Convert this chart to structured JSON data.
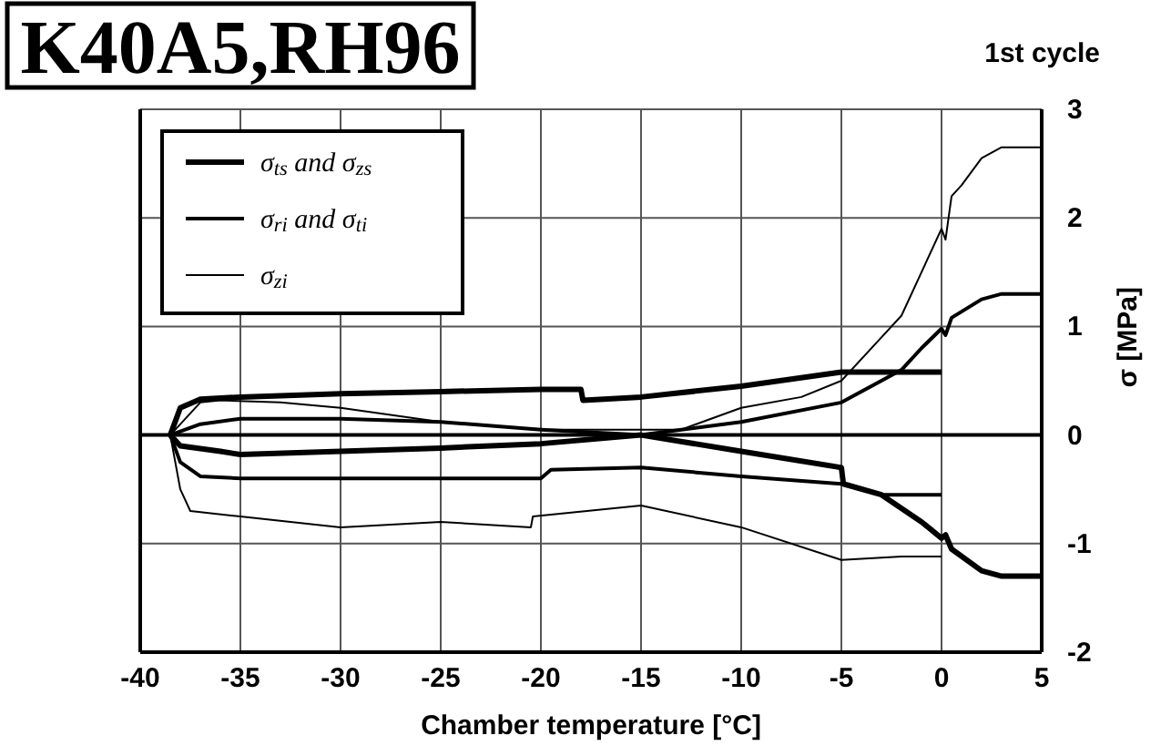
{
  "chart_data": {
    "type": "line",
    "title": "K40A5,RH96",
    "subtitle": "1st cycle",
    "xlabel": "Chamber temperature [°C]",
    "ylabel": "σ [MPa]",
    "xlim": [
      -40,
      5
    ],
    "xticks": [
      -40,
      -35,
      -30,
      -25,
      -20,
      -15,
      -10,
      -5,
      0,
      5
    ],
    "ylim": [
      -2,
      3
    ],
    "yticks": [
      -2,
      -1,
      0,
      1,
      2,
      3
    ],
    "grid": true,
    "legend": "top left",
    "marker": "none",
    "line_style": "solid",
    "series": [
      {
        "name": "σ$_{ts}$ and σ$_{zs}$",
        "color": "#000000",
        "x": [
          -38.5,
          -38,
          -37,
          -35,
          -30,
          -25,
          -20,
          -18,
          -17.9,
          -15,
          -10,
          -5,
          -3,
          0,
          null,
          -38.5,
          -38,
          -36,
          -35,
          -30,
          -25,
          -20,
          -15,
          -10,
          -5,
          -4.9,
          -3,
          -1,
          0,
          0.2,
          0.5,
          2,
          3,
          5
        ],
        "values": [
          0,
          0.25,
          0.33,
          0.35,
          0.38,
          0.4,
          0.42,
          0.42,
          0.32,
          0.35,
          0.45,
          0.58,
          0.58,
          0.58,
          null,
          0,
          -0.1,
          -0.15,
          -0.18,
          -0.15,
          -0.12,
          -0.08,
          0,
          -0.15,
          -0.3,
          -0.45,
          -0.55,
          -0.8,
          -0.95,
          -0.92,
          -1.05,
          -1.25,
          -1.3,
          -1.3
        ]
      },
      {
        "name": "σ$_{ri}$ and σ$_{ti}$",
        "color": "#000000",
        "x": [
          -38.5,
          -37,
          -35,
          -30,
          -25,
          -20,
          -15,
          -10,
          -5,
          -3,
          -2,
          -1,
          0,
          0.2,
          0.5,
          2,
          3,
          5,
          null,
          -38.5,
          -38,
          -37,
          -35,
          -30,
          -25,
          -20,
          -19.5,
          -15,
          -10,
          -5,
          -3,
          0
        ],
        "values": [
          0,
          0.1,
          0.15,
          0.15,
          0.12,
          0.05,
          0,
          0.12,
          0.3,
          0.5,
          0.6,
          0.8,
          0.98,
          0.92,
          1.08,
          1.25,
          1.3,
          1.3,
          null,
          0,
          -0.25,
          -0.38,
          -0.4,
          -0.4,
          -0.4,
          -0.4,
          -0.32,
          -0.3,
          -0.38,
          -0.45,
          -0.55,
          -0.55
        ]
      },
      {
        "name": "σ$_{zi}$",
        "color": "#000000",
        "x": [
          -38.5,
          -37,
          -36,
          -33,
          -30,
          -25,
          -20,
          -15,
          -13,
          -10,
          -7,
          -5,
          -3,
          -2,
          -1,
          0,
          0.2,
          0.5,
          1,
          2,
          3,
          5,
          null,
          -38.5,
          -38,
          -37.5,
          -35,
          -30,
          -25,
          -20.5,
          -20.4,
          -15,
          -10,
          -5,
          -2,
          0
        ],
        "values": [
          0,
          0.3,
          0.32,
          0.3,
          0.25,
          0.12,
          0.05,
          0.05,
          0.05,
          0.25,
          0.35,
          0.5,
          0.9,
          1.1,
          1.5,
          1.9,
          1.8,
          2.2,
          2.3,
          2.55,
          2.65,
          2.65,
          null,
          0,
          -0.5,
          -0.7,
          -0.75,
          -0.85,
          -0.8,
          -0.85,
          -0.75,
          -0.65,
          -0.85,
          -1.15,
          -1.12,
          -1.12
        ]
      }
    ]
  }
}
